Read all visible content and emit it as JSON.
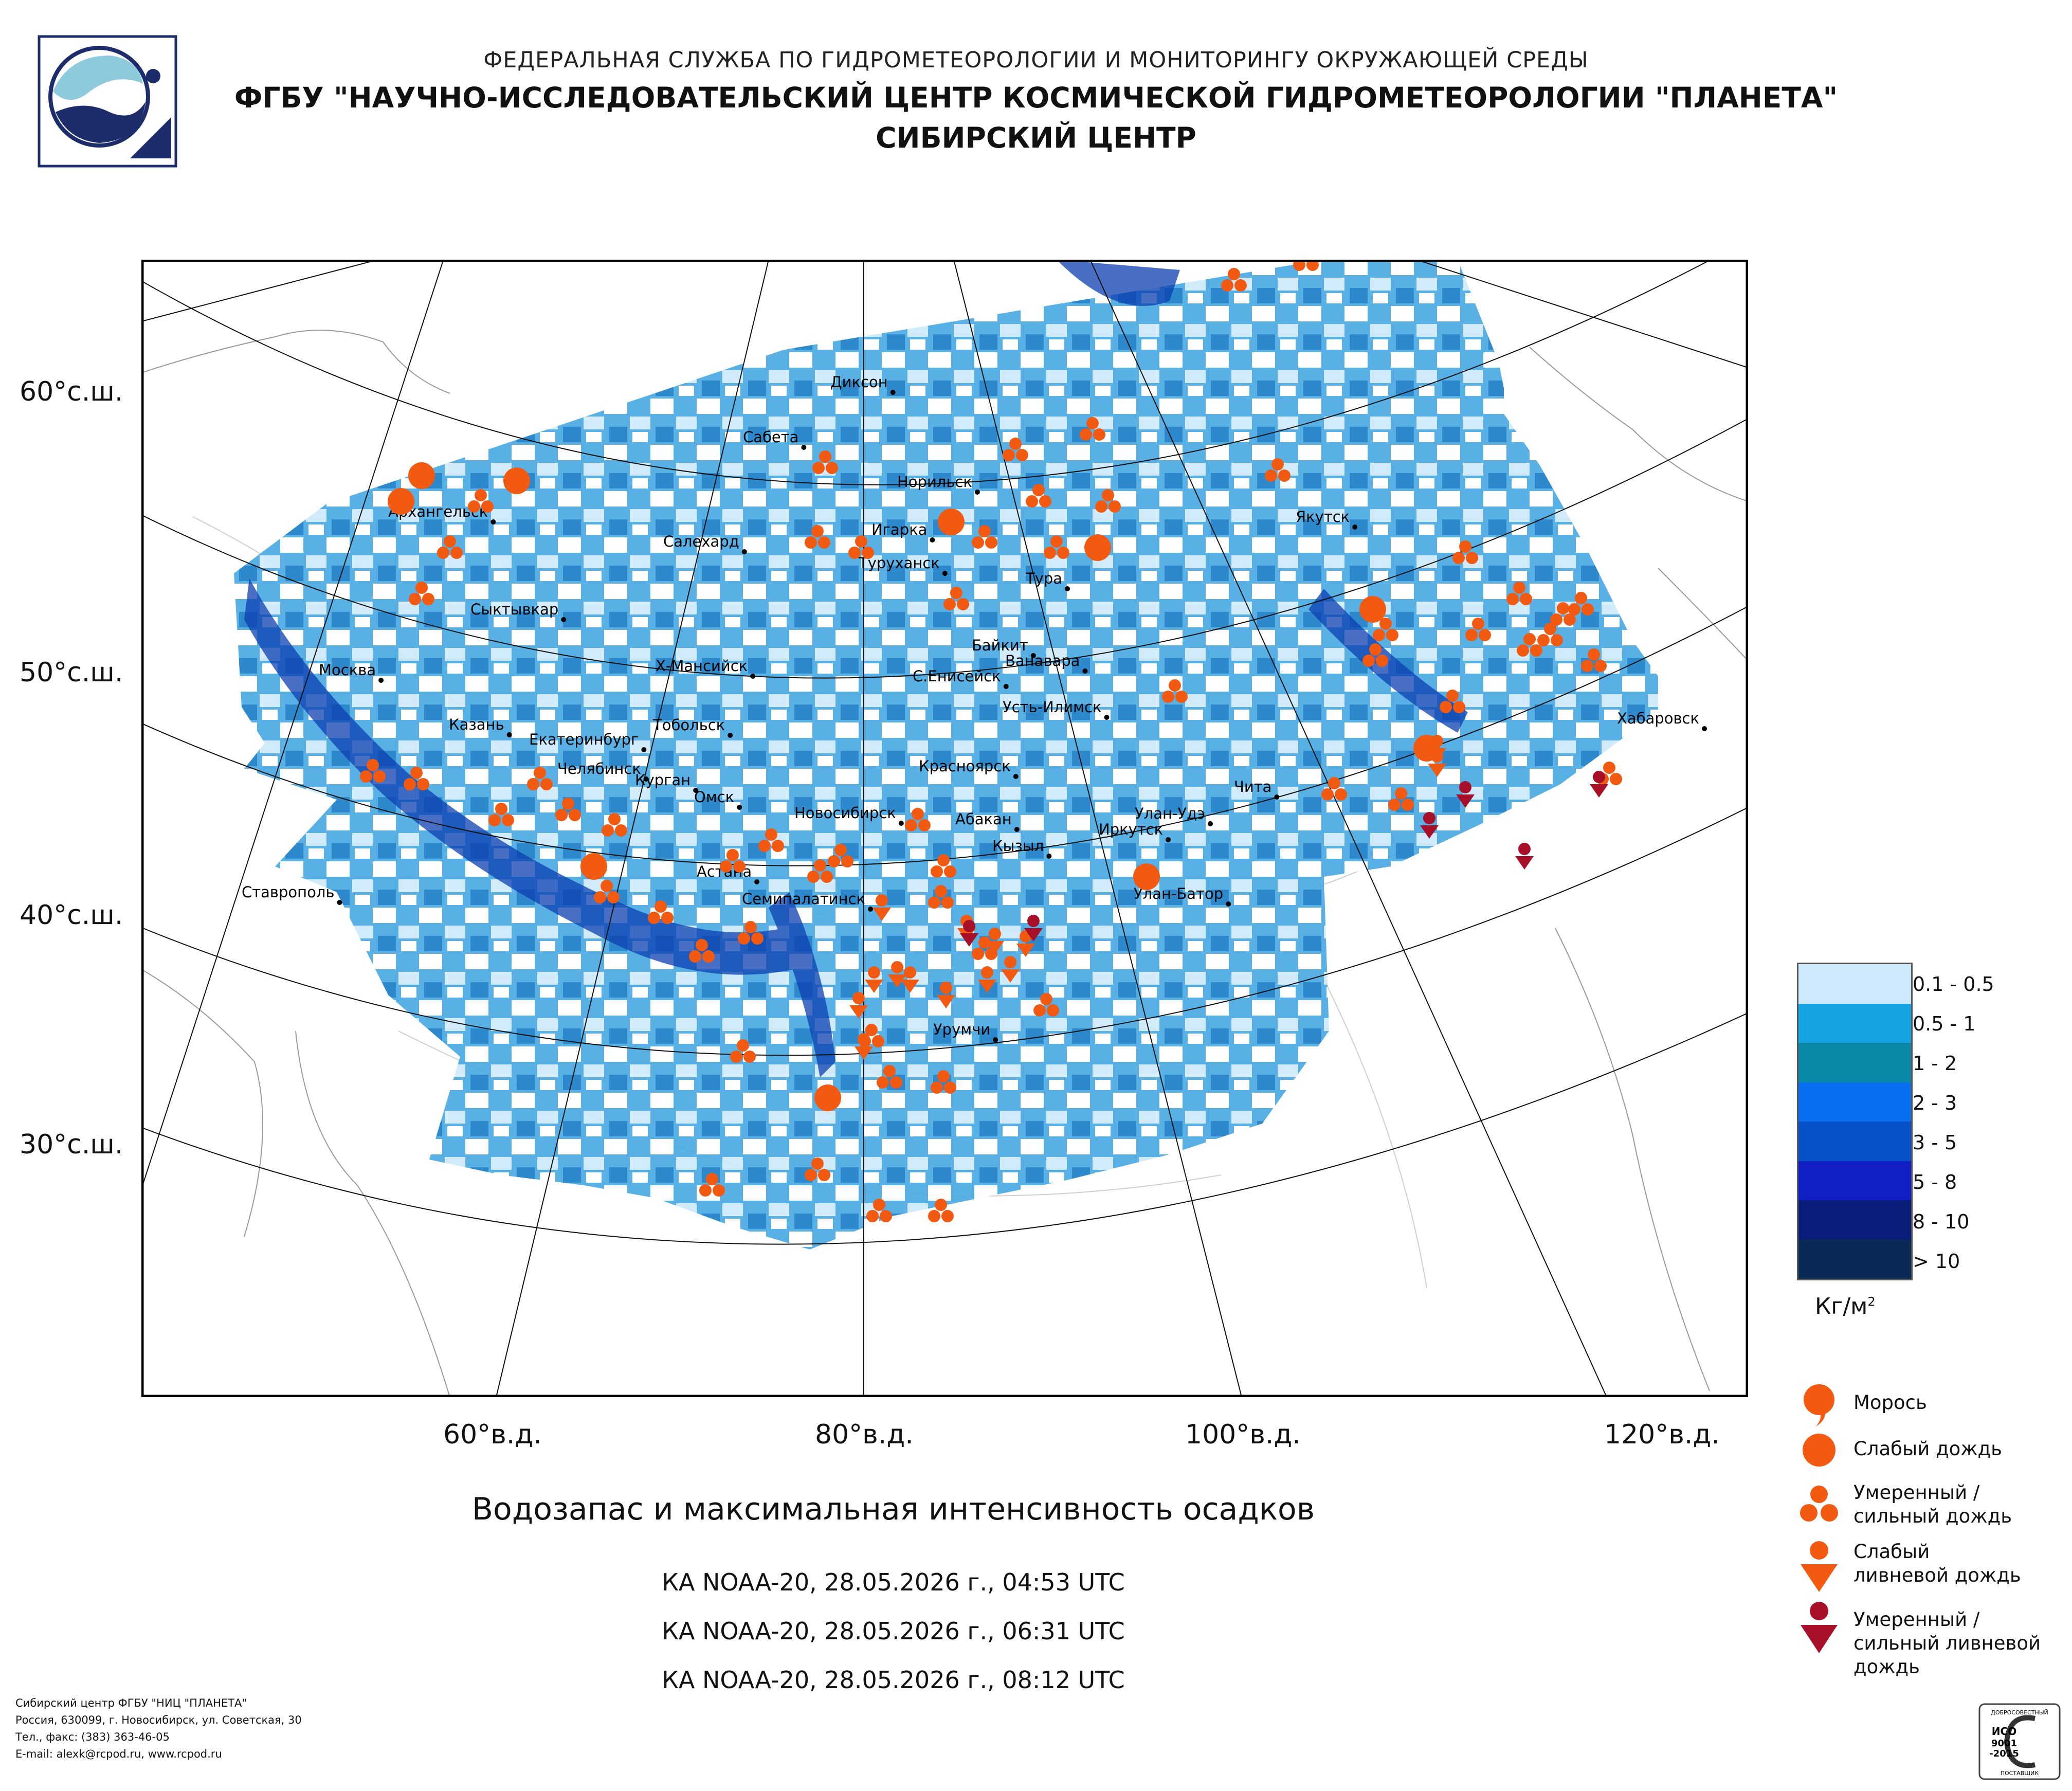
{
  "header": {
    "line1": "ФЕДЕРАЛЬНАЯ СЛУЖБА ПО ГИДРОМЕТЕОРОЛОГИИ И МОНИТОРИНГУ ОКРУЖАЮЩЕЙ СРЕДЫ",
    "line2": "ФГБУ \"НАУЧНО-ИССЛЕДОВАТЕЛЬСКИЙ ЦЕНТР КОСМИЧЕСКОЙ ГИДРОМЕТЕОРОЛОГИИ \"ПЛАНЕТА\"",
    "line3": "СИБИРСКИЙ ЦЕНТР"
  },
  "map": {
    "lat_labels": [
      "60°с.ш.",
      "50°с.ш.",
      "40°с.ш.",
      "30°с.ш."
    ],
    "lon_labels": [
      "60°в.д.",
      "80°в.д.",
      "100°в.д.",
      "120°в.д."
    ],
    "cities": [
      "Диксон",
      "Сабета",
      "Норильск",
      "Архангельск",
      "Игарка",
      "Салехард",
      "Туруханск",
      "Якутск",
      "Тура",
      "Сыктывкар",
      "Байкит",
      "Ванавара",
      "Х-Мансийск",
      "Москва",
      "С.Енисейск",
      "Усть-Илимск",
      "Хабаровск",
      "Казань",
      "Тобольск",
      "Екатеринбург",
      "Красноярск",
      "Челябинск",
      "Курган",
      "Чита",
      "Омск",
      "Новосибирск",
      "Улан-Удэ",
      "Абакан",
      "Иркутск",
      "Кызыл",
      "Астана",
      "Ставрополь",
      "Улан-Батор",
      "Семипалатинск",
      "Урумчи"
    ],
    "symbol_color": "#f25a12",
    "shower_color": "#f25a12",
    "heavy_shower_color": "#a8102a"
  },
  "caption": "Водозапас и максимальная интенсивность осадков",
  "passes": [
    "КА NOAA-20, 28.05.2026 г., 04:53 UTC",
    "КА NOAA-20, 28.05.2026 г., 06:31 UTC",
    "КА NOAA-20, 28.05.2026 г., 08:12 UTC"
  ],
  "legend": {
    "scale": [
      {
        "label": "0.1 - 0.5",
        "color": "#cde9fb"
      },
      {
        "label": "0.5 - 1",
        "color": "#14a3e3"
      },
      {
        "label": "1 - 2",
        "color": "#0b87a8"
      },
      {
        "label": "2 - 3",
        "color": "#0a6ef0"
      },
      {
        "label": "3 - 5",
        "color": "#0752c8"
      },
      {
        "label": "5 - 8",
        "color": "#1120c4"
      },
      {
        "label": "8 - 10",
        "color": "#0b1d7a"
      },
      {
        "label": "> 10",
        "color": "#082a55"
      }
    ],
    "unit": "Кг/м",
    "unit_sup": "2",
    "symbols": [
      {
        "label": "Морось"
      },
      {
        "label": "Слабый дождь"
      },
      {
        "label": "Умеренный / сильный дождь"
      },
      {
        "label": "Слабый ливневой дождь"
      },
      {
        "label": "Умеренный / сильный ливневой дождь"
      }
    ]
  },
  "footer": {
    "lines": [
      "Сибирский центр ФГБУ \"НИЦ \"ПЛАНЕТА\"",
      "Россия, 630099, г. Новосибирск, ул. Советская, 30",
      "Тел., факс: (383) 363-46-05",
      "E-mail: alexk@rcpod.ru, www.rcpod.ru"
    ],
    "iso_text": [
      "ДОБРОСОВЕСТНЫЙ",
      "ИСО",
      "9001",
      "-2015",
      "ПОСТАВЩИК"
    ]
  }
}
